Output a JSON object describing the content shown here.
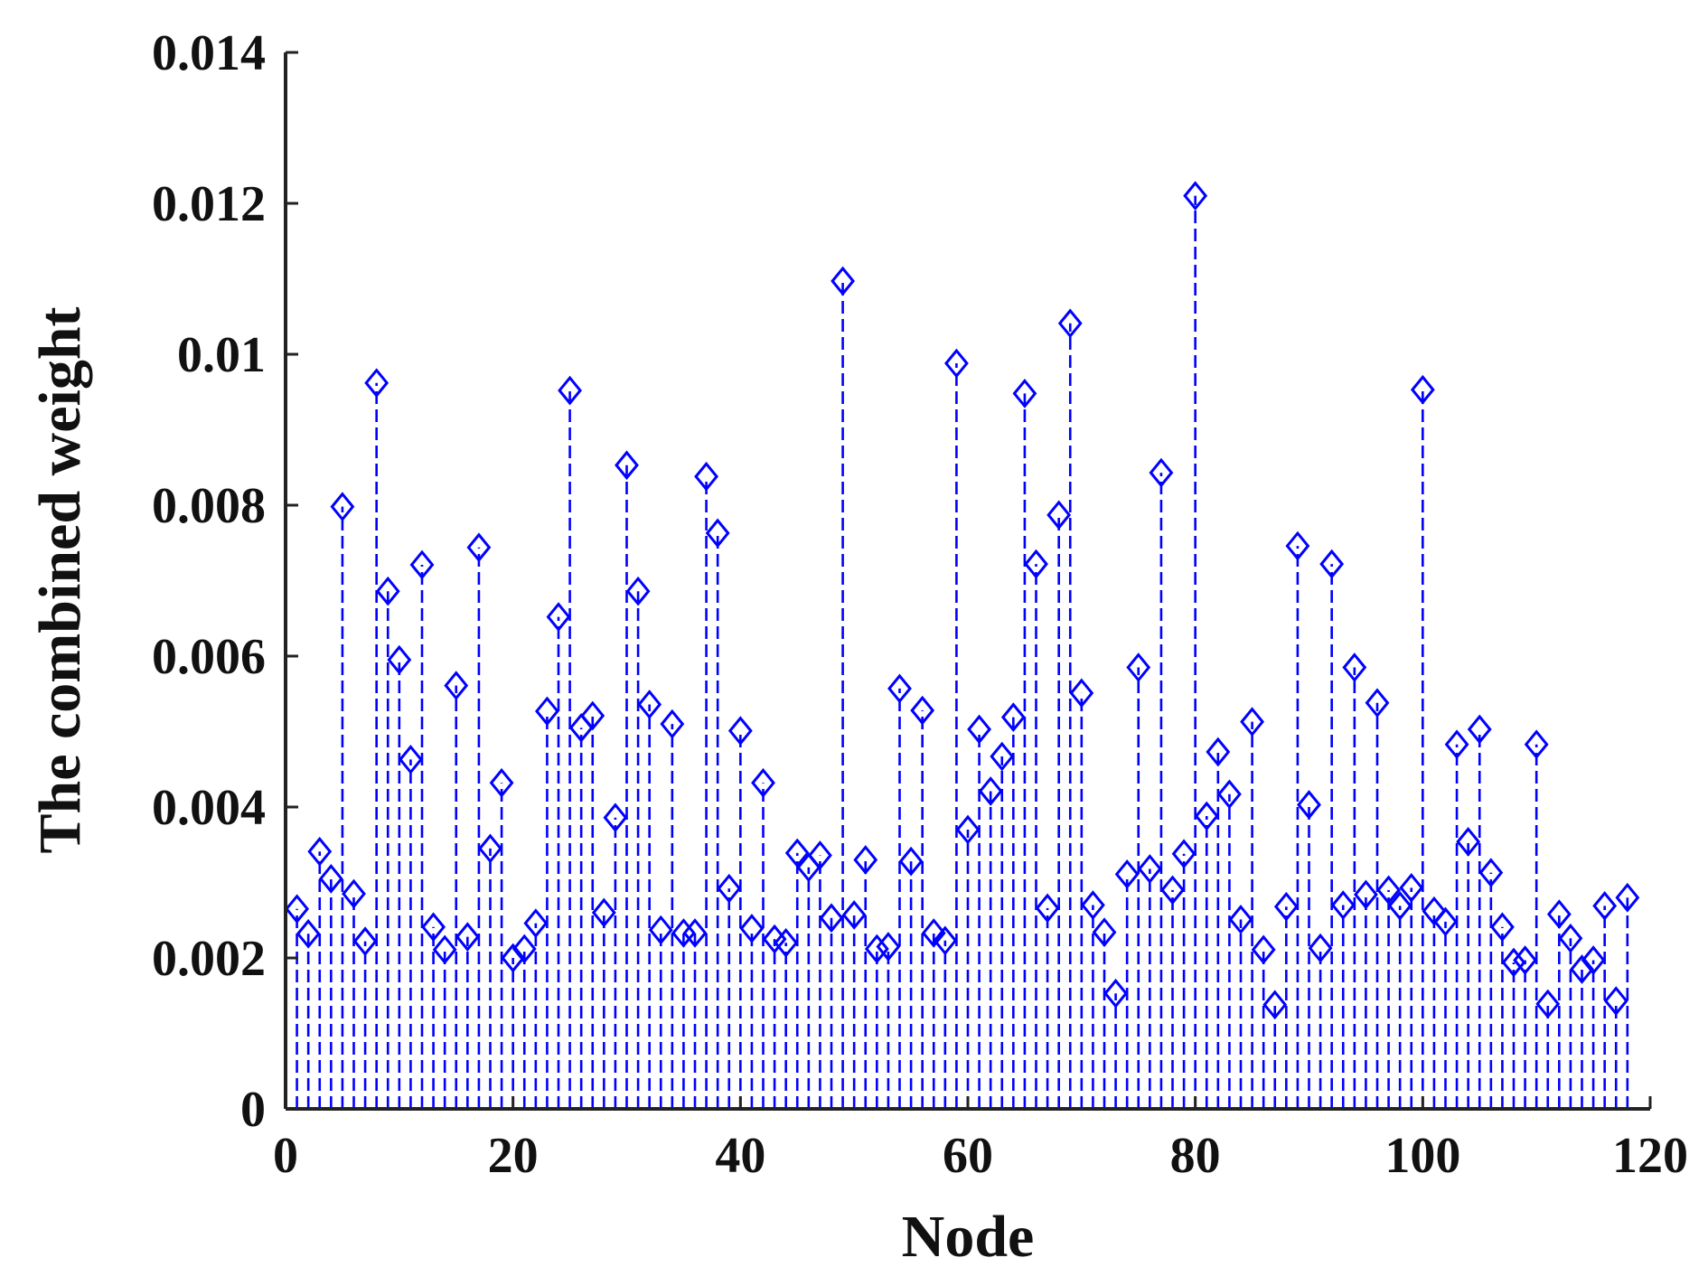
{
  "chart_data": {
    "type": "stem",
    "xlabel": "Node",
    "ylabel": "The combined weight",
    "xlim": [
      0,
      120
    ],
    "ylim": [
      0,
      0.014
    ],
    "xticks": [
      0,
      20,
      40,
      60,
      80,
      100,
      120
    ],
    "yticks": [
      0,
      0.002,
      0.004,
      0.006,
      0.008,
      0.01,
      0.012,
      0.014
    ],
    "xtick_labels": [
      "0",
      "20",
      "40",
      "60",
      "80",
      "100",
      "120"
    ],
    "ytick_labels": [
      "0",
      "0.002",
      "0.004",
      "0.006",
      "0.008",
      "0.01",
      "0.012",
      "0.014"
    ],
    "marker": "diamond",
    "line_style": "dashed",
    "color": "#0000ff",
    "grid": false,
    "series": [
      {
        "x": [
          1,
          2,
          3,
          4,
          5,
          6,
          7,
          8,
          9,
          10,
          11,
          12,
          13,
          14,
          15,
          16,
          17,
          18,
          19,
          20,
          21,
          22,
          23,
          24,
          25,
          26,
          27,
          28,
          29,
          30,
          31,
          32,
          33,
          34,
          35,
          36,
          37,
          38,
          39,
          40,
          41,
          42,
          43,
          44,
          45,
          46,
          47,
          48,
          49,
          50,
          51,
          52,
          53,
          54,
          55,
          56,
          57,
          58,
          59,
          60,
          61,
          62,
          63,
          64,
          65,
          66,
          67,
          68,
          69,
          70,
          71,
          72,
          73,
          74,
          75,
          76,
          77,
          78,
          79,
          80,
          81,
          82,
          83,
          84,
          85,
          86,
          87,
          88,
          89,
          90,
          91,
          92,
          93,
          94,
          95,
          96,
          97,
          98,
          99,
          100,
          101,
          102,
          103,
          104,
          105,
          106,
          107,
          108,
          109,
          110,
          111,
          112,
          113,
          114,
          115,
          116,
          117,
          118
        ],
        "values": [
          0.00265,
          0.00232,
          0.00341,
          0.00305,
          0.00798,
          0.00285,
          0.00222,
          0.00962,
          0.00686,
          0.00595,
          0.00463,
          0.00721,
          0.00241,
          0.00211,
          0.00561,
          0.00228,
          0.00744,
          0.00345,
          0.00432,
          0.002,
          0.00212,
          0.00246,
          0.00527,
          0.00652,
          0.00952,
          0.00505,
          0.00521,
          0.0026,
          0.00386,
          0.00853,
          0.00686,
          0.00536,
          0.00237,
          0.0051,
          0.00233,
          0.00233,
          0.00838,
          0.00763,
          0.00292,
          0.00501,
          0.00239,
          0.00432,
          0.00225,
          0.0022,
          0.00339,
          0.0032,
          0.00336,
          0.00253,
          0.01097,
          0.00257,
          0.0033,
          0.00212,
          0.00215,
          0.00557,
          0.00328,
          0.00528,
          0.00233,
          0.00223,
          0.00988,
          0.0037,
          0.00503,
          0.00421,
          0.00467,
          0.00519,
          0.00948,
          0.00722,
          0.00266,
          0.00787,
          0.01041,
          0.00551,
          0.0027,
          0.00234,
          0.00153,
          0.00311,
          0.00585,
          0.00318,
          0.00843,
          0.0029,
          0.00338,
          0.0121,
          0.00388,
          0.00473,
          0.00417,
          0.00251,
          0.00513,
          0.00211,
          0.00138,
          0.00268,
          0.00746,
          0.00403,
          0.00213,
          0.00722,
          0.0027,
          0.00585,
          0.00284,
          0.00538,
          0.0029,
          0.00269,
          0.00293,
          0.00953,
          0.00262,
          0.00248,
          0.00483,
          0.00354,
          0.00503,
          0.00313,
          0.00241,
          0.00194,
          0.00197,
          0.00483,
          0.00139,
          0.00258,
          0.00226,
          0.00185,
          0.00197,
          0.00269,
          0.00143,
          0.0028
        ]
      }
    ]
  }
}
